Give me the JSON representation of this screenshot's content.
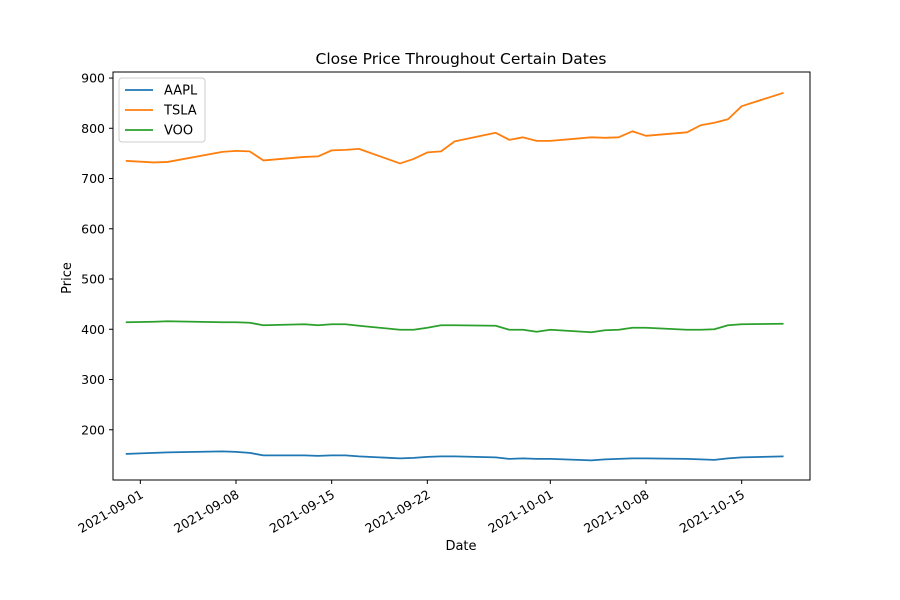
{
  "chart_data": {
    "type": "line",
    "title": "Close Price Throughout Certain Dates",
    "xlabel": "Date",
    "ylabel": "Price",
    "ylim": [
      100,
      912
    ],
    "xlim": [
      "2021-08-30",
      "2021-10-20"
    ],
    "grid": false,
    "legend_position": "top-left",
    "x_tick_labels": [
      "2021-09-01",
      "2021-09-08",
      "2021-09-15",
      "2021-09-22",
      "2021-10-01",
      "2021-10-08",
      "2021-10-15"
    ],
    "y_ticks": [
      200,
      300,
      400,
      500,
      600,
      700,
      800,
      900
    ],
    "x": [
      "2021-08-31",
      "2021-09-02",
      "2021-09-03",
      "2021-09-07",
      "2021-09-08",
      "2021-09-09",
      "2021-09-10",
      "2021-09-13",
      "2021-09-14",
      "2021-09-15",
      "2021-09-16",
      "2021-09-17",
      "2021-09-20",
      "2021-09-21",
      "2021-09-22",
      "2021-09-23",
      "2021-09-24",
      "2021-09-27",
      "2021-09-28",
      "2021-09-29",
      "2021-09-30",
      "2021-10-01",
      "2021-10-04",
      "2021-10-05",
      "2021-10-06",
      "2021-10-07",
      "2021-10-08",
      "2021-10-11",
      "2021-10-12",
      "2021-10-13",
      "2021-10-14",
      "2021-10-15",
      "2021-10-18"
    ],
    "series": [
      {
        "name": "AAPL",
        "color": "#1f77b4",
        "values": [
          152,
          154,
          155,
          157,
          156,
          154,
          149,
          149,
          148,
          149,
          149,
          147,
          143,
          144,
          146,
          147,
          147,
          145,
          142,
          143,
          142,
          142,
          139,
          141,
          142,
          143,
          143,
          142,
          141,
          140,
          143,
          145,
          147
        ]
      },
      {
        "name": "TSLA",
        "color": "#ff7f0e",
        "values": [
          735,
          732,
          733,
          753,
          755,
          754,
          736,
          743,
          744,
          756,
          757,
          759,
          730,
          739,
          752,
          754,
          774,
          791,
          777,
          782,
          775,
          775,
          782,
          781,
          782,
          794,
          785,
          792,
          806,
          811,
          818,
          844,
          870
        ]
      },
      {
        "name": "VOO",
        "color": "#2ca02c",
        "values": [
          414,
          415,
          416,
          414,
          414,
          413,
          408,
          410,
          408,
          410,
          410,
          407,
          399,
          399,
          403,
          408,
          408,
          407,
          399,
          399,
          395,
          399,
          394,
          398,
          399,
          403,
          403,
          399,
          399,
          400,
          408,
          410,
          411
        ]
      }
    ]
  }
}
